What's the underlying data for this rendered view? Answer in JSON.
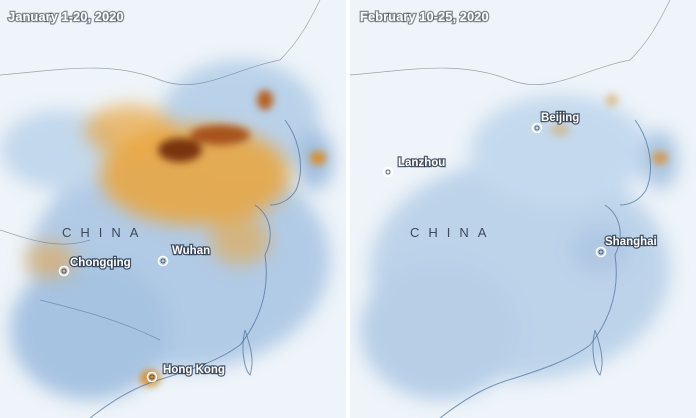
{
  "panels": [
    {
      "title": "January 1-20, 2020",
      "country": "CHINA",
      "cities": [
        "Chongqing",
        "Wuhan",
        "Hong Kong"
      ]
    },
    {
      "title": "February 10-25, 2020",
      "country": "CHINA",
      "cities": [
        "Lanzhou",
        "Beijing",
        "Shanghai"
      ]
    }
  ]
}
